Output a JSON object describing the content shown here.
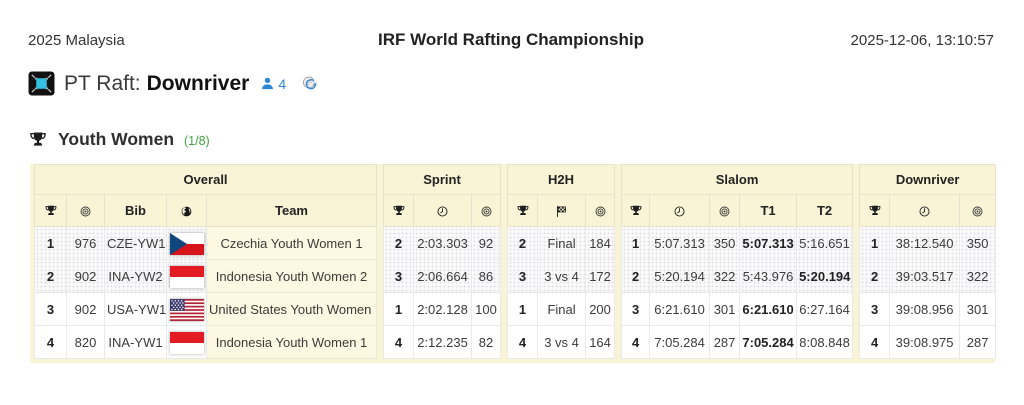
{
  "header": {
    "event_edition": "2025 Malaysia",
    "title": "IRF World Rafting Championship",
    "datetime": "2025-12-06, 13:10:57"
  },
  "subheader": {
    "prefix": "PT Raft:",
    "discipline": "Downriver",
    "participant_count": "4",
    "icons": [
      "screen-expand-icon",
      "people-icon",
      "refresh-icon"
    ]
  },
  "section": {
    "title": "Youth Women",
    "page_indicator": "(1/8)",
    "icon": "trophy-icon"
  },
  "colors": {
    "header_bg": "#FAF4D6",
    "team_cell_bg": "#FCF8E2",
    "shaded_row_bg": "#FAFAFB",
    "accent_green": "#3FA33F",
    "accent_blue": "#2E86D2",
    "screen_icon_cyan": "#35BFE0"
  },
  "table": {
    "groups": [
      {
        "id": "overall",
        "label": "Overall",
        "columns": [
          {
            "icon": "trophy-icon"
          },
          {
            "icon": "points-icon"
          },
          {
            "label": "Bib"
          },
          {
            "icon": "globe-icon"
          },
          {
            "label": "Team"
          }
        ]
      },
      {
        "id": "sprint",
        "label": "Sprint",
        "columns": [
          {
            "icon": "trophy-icon"
          },
          {
            "icon": "time-icon"
          },
          {
            "icon": "points-icon"
          }
        ]
      },
      {
        "id": "h2h",
        "label": "H2H",
        "columns": [
          {
            "icon": "trophy-icon"
          },
          {
            "icon": "race-flag-icon"
          },
          {
            "icon": "points-icon"
          }
        ]
      },
      {
        "id": "slalom",
        "label": "Slalom",
        "columns": [
          {
            "icon": "trophy-icon"
          },
          {
            "icon": "time-icon"
          },
          {
            "icon": "points-icon"
          },
          {
            "label": "T1"
          },
          {
            "label": "T2"
          }
        ]
      },
      {
        "id": "downriver",
        "label": "Downriver",
        "columns": [
          {
            "icon": "trophy-icon"
          },
          {
            "icon": "time-icon"
          },
          {
            "icon": "points-icon"
          }
        ]
      }
    ],
    "rows": [
      {
        "shaded": true,
        "overall": {
          "rank": "1",
          "points": "976",
          "bib": "CZE-YW1",
          "flag": "cz",
          "team": "Czechia Youth Women 1"
        },
        "sprint": {
          "rank": "2",
          "time": "2:03.303",
          "points": "92"
        },
        "h2h": {
          "rank": "2",
          "match": "Final",
          "points": "184"
        },
        "slalom": {
          "rank": "1",
          "time": "5:07.313",
          "points": "350",
          "t1": "5:07.313",
          "t2": "5:16.651",
          "best_run": "t1"
        },
        "downriver": {
          "rank": "1",
          "time": "38:12.540",
          "points": "350"
        }
      },
      {
        "shaded": true,
        "overall": {
          "rank": "2",
          "points": "902",
          "bib": "INA-YW2",
          "flag": "id",
          "team": "Indonesia Youth Women 2"
        },
        "sprint": {
          "rank": "3",
          "time": "2:06.664",
          "points": "86"
        },
        "h2h": {
          "rank": "3",
          "match": "3 vs 4",
          "points": "172"
        },
        "slalom": {
          "rank": "2",
          "time": "5:20.194",
          "points": "322",
          "t1": "5:43.976",
          "t2": "5:20.194",
          "best_run": "t2"
        },
        "downriver": {
          "rank": "2",
          "time": "39:03.517",
          "points": "322"
        }
      },
      {
        "shaded": false,
        "overall": {
          "rank": "3",
          "points": "902",
          "bib": "USA-YW1",
          "flag": "us",
          "team": "United States Youth Women 1"
        },
        "sprint": {
          "rank": "1",
          "time": "2:02.128",
          "points": "100"
        },
        "h2h": {
          "rank": "1",
          "match": "Final",
          "points": "200"
        },
        "slalom": {
          "rank": "3",
          "time": "6:21.610",
          "points": "301",
          "t1": "6:21.610",
          "t2": "6:27.164",
          "best_run": "t1"
        },
        "downriver": {
          "rank": "3",
          "time": "39:08.956",
          "points": "301"
        }
      },
      {
        "shaded": false,
        "overall": {
          "rank": "4",
          "points": "820",
          "bib": "INA-YW1",
          "flag": "id",
          "team": "Indonesia Youth Women 1"
        },
        "sprint": {
          "rank": "4",
          "time": "2:12.235",
          "points": "82"
        },
        "h2h": {
          "rank": "4",
          "match": "3 vs 4",
          "points": "164"
        },
        "slalom": {
          "rank": "4",
          "time": "7:05.284",
          "points": "287",
          "t1": "7:05.284",
          "t2": "8:08.848",
          "best_run": "t1"
        },
        "downriver": {
          "rank": "4",
          "time": "39:08.975",
          "points": "287"
        }
      }
    ]
  }
}
